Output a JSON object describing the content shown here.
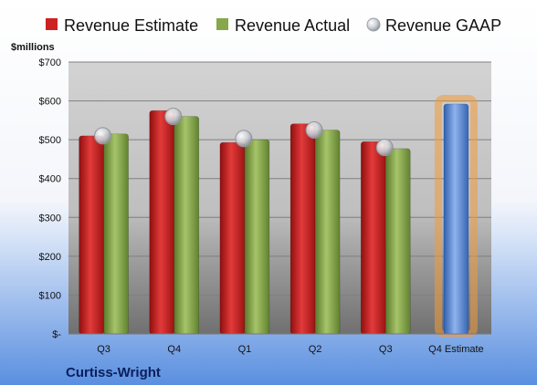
{
  "chart_data": {
    "type": "bar",
    "ylabel": "$millions",
    "ylim": [
      0,
      700
    ],
    "yticks": [
      {
        "value": 0,
        "label": "$-"
      },
      {
        "value": 100,
        "label": "$100"
      },
      {
        "value": 200,
        "label": "$200"
      },
      {
        "value": 300,
        "label": "$300"
      },
      {
        "value": 400,
        "label": "$400"
      },
      {
        "value": 500,
        "label": "$500"
      },
      {
        "value": 600,
        "label": "$600"
      },
      {
        "value": 700,
        "label": "$700"
      }
    ],
    "categories": [
      "Q3",
      "Q4",
      "Q1",
      "Q2",
      "Q3",
      "Q4 Estimate"
    ],
    "series": [
      {
        "name": "Revenue Estimate",
        "kind": "bar",
        "color": "#cc2222",
        "values": [
          510,
          575,
          493,
          541,
          495,
          null
        ]
      },
      {
        "name": "Revenue Actual",
        "kind": "bar",
        "color": "#86a84a",
        "values": [
          515,
          560,
          500,
          525,
          477,
          null
        ]
      },
      {
        "name": "Revenue GAAP",
        "kind": "point",
        "color": "#b8bcc4",
        "values": [
          510,
          560,
          503,
          525,
          480,
          null
        ]
      },
      {
        "name": "",
        "kind": "bar",
        "color": "#4f81d0",
        "highlight": true,
        "values": [
          null,
          null,
          null,
          null,
          null,
          592
        ]
      }
    ],
    "legend_position": "top",
    "grid": true
  },
  "company": "Curtiss-Wright"
}
